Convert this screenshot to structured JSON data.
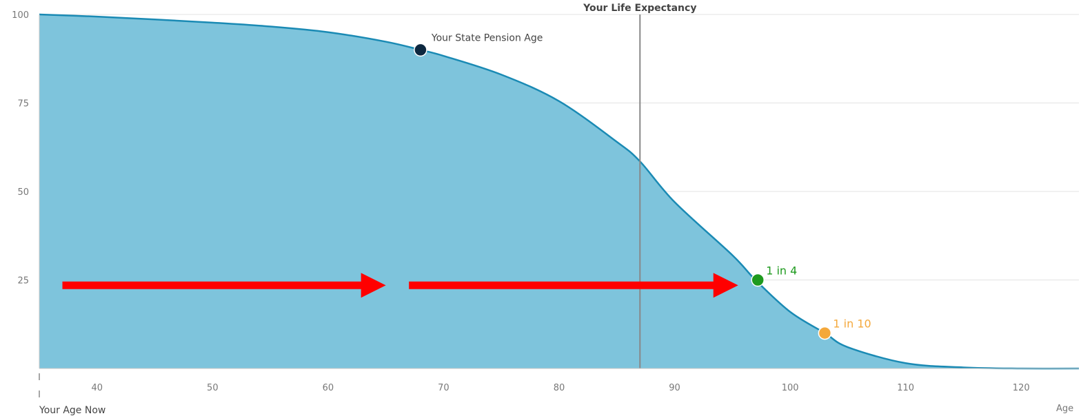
{
  "chart_data": {
    "type": "area",
    "xlabel": "Age",
    "ylabel": "",
    "xlim": [
      35,
      125
    ],
    "ylim": [
      0,
      100
    ],
    "x_ticks": [
      40,
      50,
      60,
      70,
      80,
      90,
      100,
      110,
      120
    ],
    "y_ticks": [
      25,
      50,
      75,
      100
    ],
    "grid": true,
    "series": [
      {
        "color": "#1a8ab4",
        "fill": "#7ec4dc",
        "x": [
          35,
          40,
          45,
          50,
          55,
          60,
          65,
          68,
          70,
          75,
          80,
          85,
          87,
          90,
          95,
          97,
          100,
          103,
          105,
          110,
          115,
          120,
          125
        ],
        "y": [
          100,
          99.4,
          98.6,
          97.7,
          96.6,
          95,
          92.3,
          90,
          88.3,
          83,
          75.5,
          64,
          58.5,
          47,
          32,
          25,
          16,
          10,
          6,
          1.5,
          0.3,
          0,
          0
        ]
      }
    ],
    "annotations": {
      "life_expectancy": {
        "label": "Your Life Expectancy",
        "x": 87
      },
      "age_now": {
        "label": "Your Age Now",
        "x": 35
      },
      "markers": [
        {
          "label": "Your State Pension Age",
          "x": 68,
          "y": 90,
          "color": "#0d2840"
        },
        {
          "label": "1 in 4",
          "x": 97.2,
          "y": 25,
          "color": "#1e9a1e"
        },
        {
          "label": "1 in 10",
          "x": 103,
          "y": 10,
          "color": "#f4a83b"
        }
      ],
      "arrows": [
        {
          "from_x": 37,
          "to_x": 65,
          "y": 23.5,
          "color": "#ff0000"
        },
        {
          "from_x": 67,
          "to_x": 95.5,
          "y": 23.5,
          "color": "#ff0000"
        }
      ]
    }
  }
}
